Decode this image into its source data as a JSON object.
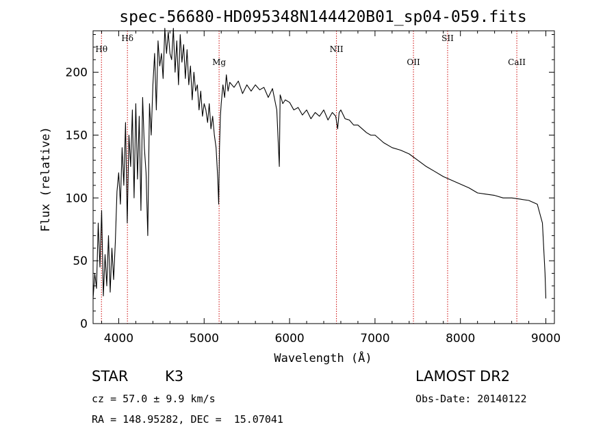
{
  "chart_data": {
    "type": "line",
    "title": "spec-56680-HD095348N144420B01_sp04-059.fits",
    "xlabel": "Wavelength (Å)",
    "ylabel": "Flux (relative)",
    "xlim": [
      3700,
      9100
    ],
    "ylim": [
      0,
      233
    ],
    "x_ticks": [
      4000,
      5000,
      6000,
      7000,
      8000,
      9000
    ],
    "y_ticks": [
      0,
      50,
      100,
      150,
      200
    ],
    "grid": false,
    "series": [
      {
        "x": [
          3700,
          3720,
          3740,
          3760,
          3780,
          3800,
          3820,
          3840,
          3860,
          3880,
          3900,
          3920,
          3940,
          3960,
          3980,
          4000,
          4020,
          4040,
          4060,
          4080,
          4100,
          4120,
          4140,
          4160,
          4180,
          4200,
          4220,
          4240,
          4260,
          4280,
          4300,
          4320,
          4340,
          4360,
          4380,
          4400,
          4420,
          4440,
          4460,
          4480,
          4500,
          4520,
          4540,
          4560,
          4580,
          4600,
          4620,
          4640,
          4660,
          4680,
          4700,
          4720,
          4740,
          4760,
          4780,
          4800,
          4820,
          4840,
          4860,
          4880,
          4900,
          4920,
          4940,
          4960,
          4980,
          5000,
          5020,
          5040,
          5060,
          5080,
          5100,
          5120,
          5140,
          5160,
          5170,
          5180,
          5190,
          5200,
          5220,
          5240,
          5260,
          5280,
          5300,
          5350,
          5400,
          5450,
          5500,
          5550,
          5600,
          5650,
          5700,
          5750,
          5800,
          5850,
          5880,
          5890,
          5900,
          5920,
          5950,
          6000,
          6050,
          6100,
          6150,
          6200,
          6250,
          6300,
          6350,
          6400,
          6450,
          6500,
          6540,
          6563,
          6580,
          6600,
          6650,
          6700,
          6750,
          6800,
          6850,
          6900,
          6950,
          7000,
          7100,
          7200,
          7300,
          7400,
          7500,
          7600,
          7700,
          7800,
          7900,
          8000,
          8100,
          8200,
          8300,
          8400,
          8500,
          8600,
          8700,
          8800,
          8900,
          8960,
          8990,
          9000
        ],
        "y": [
          20,
          40,
          28,
          80,
          45,
          90,
          22,
          55,
          30,
          70,
          25,
          60,
          35,
          65,
          105,
          120,
          95,
          140,
          110,
          160,
          80,
          150,
          125,
          170,
          100,
          175,
          115,
          165,
          90,
          180,
          140,
          120,
          70,
          175,
          150,
          190,
          215,
          170,
          225,
          205,
          215,
          195,
          235,
          215,
          232,
          215,
          210,
          235,
          200,
          225,
          190,
          230,
          208,
          222,
          195,
          218,
          190,
          205,
          178,
          200,
          185,
          190,
          170,
          185,
          165,
          175,
          170,
          160,
          175,
          155,
          165,
          150,
          140,
          115,
          95,
          140,
          165,
          175,
          190,
          180,
          198,
          185,
          192,
          188,
          193,
          183,
          190,
          185,
          190,
          186,
          188,
          180,
          187,
          170,
          125,
          182,
          180,
          175,
          178,
          176,
          170,
          172,
          166,
          170,
          163,
          168,
          165,
          170,
          162,
          168,
          165,
          155,
          168,
          170,
          163,
          162,
          158,
          158,
          155,
          152,
          150,
          150,
          144,
          140,
          138,
          135,
          130,
          125,
          121,
          117,
          114,
          111,
          108,
          104,
          103,
          102,
          100,
          100,
          99,
          98,
          95,
          80,
          40,
          20
        ]
      }
    ],
    "annotations": [
      {
        "label": "Hθ",
        "x": 3798
      },
      {
        "label": "Hδ",
        "x": 4102
      },
      {
        "label": "Mg",
        "x": 5175
      },
      {
        "label": "NII",
        "x": 6549
      },
      {
        "label": "OII",
        "x": 7450
      },
      {
        "label": "SII",
        "x": 7850
      },
      {
        "label": "CaII",
        "x": 8660
      }
    ]
  },
  "info": {
    "object_type": "STAR",
    "subclass": "K3",
    "survey": "LAMOST DR2",
    "cz": "cz = 57.0 ± 9.9 km/s",
    "obs_date": "Obs-Date: 20140122",
    "coords": "RA = 148.95282, DEC =  15.07041"
  },
  "colors": {
    "spectrum": "#000000",
    "line_marker": "#cc0000"
  }
}
